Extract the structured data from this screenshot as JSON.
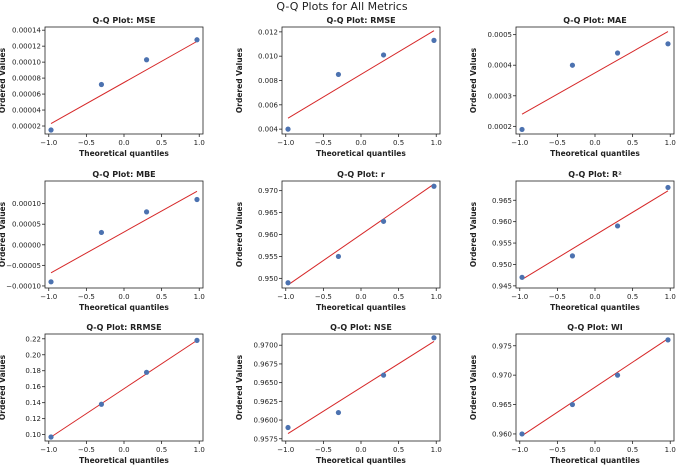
{
  "figure": {
    "title": "Q-Q Plots for All Metrics"
  },
  "colors": {
    "point": "#4c72b0",
    "line": "#d62728",
    "axis": "#222222"
  },
  "chart_data": [
    {
      "type": "scatter",
      "metric": "MSE",
      "title": "Q-Q Plot: MSE",
      "xlabel": "Theoretical quantiles",
      "ylabel": "Ordered Values",
      "x": [
        -0.97,
        -0.3,
        0.3,
        0.97
      ],
      "y": [
        1.5e-05,
        7.2e-05,
        0.000103,
        0.000128
      ],
      "line": {
        "x": [
          -0.97,
          0.97
        ],
        "y": [
          2.3e-05,
          0.000126
        ]
      },
      "xlim": [
        -1.05,
        1.05
      ],
      "ylim": [
        1e-05,
        0.000144
      ],
      "xticks": [
        -1.0,
        -0.5,
        0.0,
        0.5,
        1.0
      ],
      "xtick_labels": [
        "−1.0",
        "−0.5",
        "0.0",
        "0.5",
        "1.0"
      ],
      "yticks": [
        2e-05,
        4e-05,
        6e-05,
        8e-05,
        0.0001,
        0.00012,
        0.00014
      ],
      "ytick_labels": [
        "0.00002",
        "0.00004",
        "0.00006",
        "0.00008",
        "0.00010",
        "0.00012",
        "0.00014"
      ]
    },
    {
      "type": "scatter",
      "metric": "RMSE",
      "title": "Q-Q Plot: RMSE",
      "xlabel": "Theoretical quantiles",
      "ylabel": "Ordered Values",
      "x": [
        -0.97,
        -0.3,
        0.3,
        0.97
      ],
      "y": [
        0.004,
        0.0085,
        0.0101,
        0.0113
      ],
      "line": {
        "x": [
          -0.97,
          0.97
        ],
        "y": [
          0.0049,
          0.0121
        ]
      },
      "xlim": [
        -1.05,
        1.05
      ],
      "ylim": [
        0.0036,
        0.0124
      ],
      "xticks": [
        -1.0,
        -0.5,
        0.0,
        0.5,
        1.0
      ],
      "xtick_labels": [
        "−1.0",
        "−0.5",
        "0.0",
        "0.5",
        "1.0"
      ],
      "yticks": [
        0.004,
        0.006,
        0.008,
        0.01,
        0.012
      ],
      "ytick_labels": [
        "0.004",
        "0.006",
        "0.008",
        "0.010",
        "0.012"
      ]
    },
    {
      "type": "scatter",
      "metric": "MAE",
      "title": "Q-Q Plot: MAE",
      "xlabel": "Theoretical quantiles",
      "ylabel": "Ordered Values",
      "x": [
        -0.97,
        -0.3,
        0.3,
        0.97
      ],
      "y": [
        0.00019,
        0.0004,
        0.00044,
        0.00047
      ],
      "line": {
        "x": [
          -0.97,
          0.97
        ],
        "y": [
          0.00024,
          0.00051
        ]
      },
      "xlim": [
        -1.05,
        1.05
      ],
      "ylim": [
        0.000175,
        0.000525
      ],
      "xticks": [
        -1.0,
        -0.5,
        0.0,
        0.5,
        1.0
      ],
      "xtick_labels": [
        "−1.0",
        "−0.5",
        "0.0",
        "0.5",
        "1.0"
      ],
      "yticks": [
        0.0002,
        0.0003,
        0.0004,
        0.0005
      ],
      "ytick_labels": [
        "0.0002",
        "0.0003",
        "0.0004",
        "0.0005"
      ]
    },
    {
      "type": "scatter",
      "metric": "MBE",
      "title": "Q-Q Plot: MBE",
      "xlabel": "Theoretical quantiles",
      "ylabel": "Ordered Values",
      "x": [
        -0.97,
        -0.3,
        0.3,
        0.97
      ],
      "y": [
        -9e-05,
        3e-05,
        8e-05,
        0.00011
      ],
      "line": {
        "x": [
          -0.97,
          0.97
        ],
        "y": [
          -6.8e-05,
          0.00013
        ]
      },
      "xlim": [
        -1.05,
        1.05
      ],
      "ylim": [
        -0.000105,
        0.000155
      ],
      "xticks": [
        -1.0,
        -0.5,
        0.0,
        0.5,
        1.0
      ],
      "xtick_labels": [
        "−1.0",
        "−0.5",
        "0.0",
        "0.5",
        "1.0"
      ],
      "yticks": [
        -0.0001,
        -5e-05,
        0,
        5e-05,
        0.0001
      ],
      "ytick_labels": [
        "−0.00010",
        "−0.00005",
        "0.00000",
        "0.00005",
        "0.00010"
      ]
    },
    {
      "type": "scatter",
      "metric": "r",
      "title": "Q-Q Plot: r",
      "xlabel": "Theoretical quantiles",
      "ylabel": "Ordered Values",
      "x": [
        -0.97,
        -0.3,
        0.3,
        0.97
      ],
      "y": [
        0.949,
        0.955,
        0.963,
        0.971
      ],
      "line": {
        "x": [
          -0.97,
          0.97
        ],
        "y": [
          0.9485,
          0.9715
        ]
      },
      "xlim": [
        -1.05,
        1.05
      ],
      "ylim": [
        0.9478,
        0.9722
      ],
      "xticks": [
        -1.0,
        -0.5,
        0.0,
        0.5,
        1.0
      ],
      "xtick_labels": [
        "−1.0",
        "−0.5",
        "0.0",
        "0.5",
        "1.0"
      ],
      "yticks": [
        0.95,
        0.955,
        0.96,
        0.965,
        0.97
      ],
      "ytick_labels": [
        "0.950",
        "0.955",
        "0.960",
        "0.965",
        "0.970"
      ]
    },
    {
      "type": "scatter",
      "metric": "R²",
      "title": "Q-Q Plot: R²",
      "xlabel": "Theoretical quantiles",
      "ylabel": "Ordered Values",
      "x": [
        -0.97,
        -0.3,
        0.3,
        0.97
      ],
      "y": [
        0.947,
        0.952,
        0.959,
        0.968
      ],
      "line": {
        "x": [
          -0.97,
          0.97
        ],
        "y": [
          0.9465,
          0.9672
        ]
      },
      "xlim": [
        -1.05,
        1.05
      ],
      "ylim": [
        0.9445,
        0.9695
      ],
      "xticks": [
        -1.0,
        -0.5,
        0.0,
        0.5,
        1.0
      ],
      "xtick_labels": [
        "−1.0",
        "−0.5",
        "0.0",
        "0.5",
        "1.0"
      ],
      "yticks": [
        0.945,
        0.95,
        0.955,
        0.96,
        0.965
      ],
      "ytick_labels": [
        "0.945",
        "0.950",
        "0.955",
        "0.960",
        "0.965"
      ]
    },
    {
      "type": "scatter",
      "metric": "RRMSE",
      "title": "Q-Q Plot: RRMSE",
      "xlabel": "Theoretical quantiles",
      "ylabel": "Ordered Values",
      "x": [
        -0.97,
        -0.3,
        0.3,
        0.97
      ],
      "y": [
        0.097,
        0.138,
        0.178,
        0.218
      ],
      "line": {
        "x": [
          -0.97,
          0.97
        ],
        "y": [
          0.097,
          0.218
        ]
      },
      "xlim": [
        -1.05,
        1.05
      ],
      "ylim": [
        0.092,
        0.226
      ],
      "xticks": [
        -1.0,
        -0.5,
        0.0,
        0.5,
        1.0
      ],
      "xtick_labels": [
        "−1.0",
        "−0.5",
        "0.0",
        "0.5",
        "1.0"
      ],
      "yticks": [
        0.1,
        0.12,
        0.14,
        0.16,
        0.18,
        0.2,
        0.22
      ],
      "ytick_labels": [
        "0.10",
        "0.12",
        "0.14",
        "0.16",
        "0.18",
        "0.20",
        "0.22"
      ]
    },
    {
      "type": "scatter",
      "metric": "NSE",
      "title": "Q-Q Plot: NSE",
      "xlabel": "Theoretical quantiles",
      "ylabel": "Ordered Values",
      "x": [
        -0.97,
        -0.3,
        0.3,
        0.97
      ],
      "y": [
        0.959,
        0.961,
        0.966,
        0.971
      ],
      "line": {
        "x": [
          -0.97,
          0.97
        ],
        "y": [
          0.9582,
          0.9705
        ]
      },
      "xlim": [
        -1.05,
        1.05
      ],
      "ylim": [
        0.9572,
        0.9715
      ],
      "xticks": [
        -1.0,
        -0.5,
        0.0,
        0.5,
        1.0
      ],
      "xtick_labels": [
        "−1.0",
        "−0.5",
        "0.0",
        "0.5",
        "1.0"
      ],
      "yticks": [
        0.9575,
        0.96,
        0.9625,
        0.965,
        0.9675,
        0.97
      ],
      "ytick_labels": [
        "0.9575",
        "0.9600",
        "0.9625",
        "0.9650",
        "0.9675",
        "0.9700"
      ]
    },
    {
      "type": "scatter",
      "metric": "WI",
      "title": "Q-Q Plot: WI",
      "xlabel": "Theoretical quantiles",
      "ylabel": "Ordered Values",
      "x": [
        -0.97,
        -0.3,
        0.3,
        0.97
      ],
      "y": [
        0.96,
        0.965,
        0.97,
        0.976
      ],
      "line": {
        "x": [
          -0.97,
          0.97
        ],
        "y": [
          0.9597,
          0.9762
        ]
      },
      "xlim": [
        -1.05,
        1.05
      ],
      "ylim": [
        0.9588,
        0.977
      ],
      "xticks": [
        -1.0,
        -0.5,
        0.0,
        0.5,
        1.0
      ],
      "xtick_labels": [
        "−1.0",
        "−0.5",
        "0.0",
        "0.5",
        "1.0"
      ],
      "yticks": [
        0.96,
        0.965,
        0.97,
        0.975
      ],
      "ytick_labels": [
        "0.960",
        "0.965",
        "0.970",
        "0.975"
      ]
    }
  ]
}
